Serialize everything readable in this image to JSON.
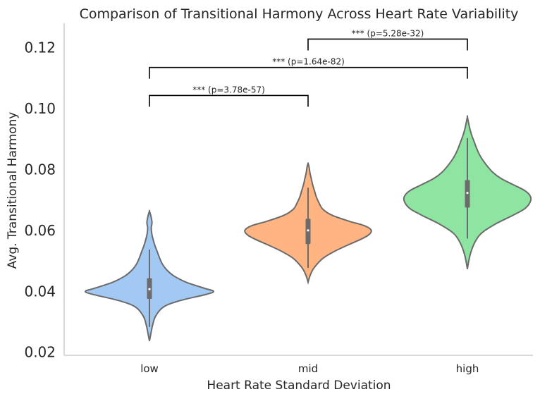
{
  "chart_data": {
    "type": "violin",
    "title": "Comparison of Transitional Harmony Across Heart Rate Variability",
    "xlabel": "Heart Rate Standard Deviation",
    "ylabel": "Avg. Transitional Harmony",
    "categories": [
      "low",
      "mid",
      "high"
    ],
    "ylim": [
      0.019,
      0.128
    ],
    "yticks": [
      0.02,
      0.04,
      0.06,
      0.08,
      0.1,
      0.12
    ],
    "ytick_labels": [
      "0.02",
      "0.04",
      "0.06",
      "0.08",
      "0.10",
      "0.12"
    ],
    "grid": false,
    "colors": {
      "low": "#a1c9f4",
      "mid": "#ffb482",
      "high": "#8de5a1",
      "outline": "#6b6b6b",
      "box": "#6b6b6b",
      "axis": "#cccccc",
      "bracket": "#000000"
    },
    "violins": [
      {
        "category": "low",
        "ymin": 0.0237,
        "ymax": 0.0663,
        "whisker": [
          0.0283,
          0.0537
        ],
        "q1": 0.0375,
        "median": 0.0407,
        "q3": 0.0443,
        "profile": [
          [
            0.0237,
            0.0
          ],
          [
            0.026,
            0.015
          ],
          [
            0.029,
            0.035
          ],
          [
            0.032,
            0.07
          ],
          [
            0.035,
            0.16
          ],
          [
            0.037,
            0.34
          ],
          [
            0.039,
            0.62
          ],
          [
            0.04,
            0.7
          ],
          [
            0.041,
            0.6
          ],
          [
            0.043,
            0.4
          ],
          [
            0.045,
            0.27
          ],
          [
            0.047,
            0.19
          ],
          [
            0.049,
            0.14
          ],
          [
            0.051,
            0.11
          ],
          [
            0.053,
            0.085
          ],
          [
            0.055,
            0.06
          ],
          [
            0.057,
            0.04
          ],
          [
            0.059,
            0.025
          ],
          [
            0.061,
            0.02
          ],
          [
            0.0625,
            0.028
          ],
          [
            0.0645,
            0.018
          ],
          [
            0.0663,
            0.0
          ]
        ]
      },
      {
        "category": "mid",
        "ymin": 0.043,
        "ymax": 0.082,
        "whisker": [
          0.0477,
          0.074
        ],
        "q1": 0.0555,
        "median": 0.06,
        "q3": 0.0638,
        "profile": [
          [
            0.043,
            0.0
          ],
          [
            0.045,
            0.02
          ],
          [
            0.047,
            0.05
          ],
          [
            0.049,
            0.1
          ],
          [
            0.051,
            0.17
          ],
          [
            0.053,
            0.28
          ],
          [
            0.055,
            0.42
          ],
          [
            0.057,
            0.57
          ],
          [
            0.0585,
            0.66
          ],
          [
            0.06,
            0.69
          ],
          [
            0.0615,
            0.62
          ],
          [
            0.063,
            0.45
          ],
          [
            0.065,
            0.26
          ],
          [
            0.067,
            0.16
          ],
          [
            0.069,
            0.12
          ],
          [
            0.071,
            0.09
          ],
          [
            0.073,
            0.07
          ],
          [
            0.075,
            0.05
          ],
          [
            0.077,
            0.035
          ],
          [
            0.079,
            0.02
          ],
          [
            0.081,
            0.01
          ],
          [
            0.082,
            0.0
          ]
        ]
      },
      {
        "category": "high",
        "ymin": 0.0473,
        "ymax": 0.0973,
        "whisker": [
          0.0573,
          0.0903
        ],
        "q1": 0.0675,
        "median": 0.0723,
        "q3": 0.0765,
        "profile": [
          [
            0.0473,
            0.0
          ],
          [
            0.05,
            0.015
          ],
          [
            0.053,
            0.04
          ],
          [
            0.056,
            0.08
          ],
          [
            0.059,
            0.15
          ],
          [
            0.062,
            0.3
          ],
          [
            0.065,
            0.5
          ],
          [
            0.067,
            0.62
          ],
          [
            0.069,
            0.68
          ],
          [
            0.071,
            0.69
          ],
          [
            0.073,
            0.63
          ],
          [
            0.075,
            0.5
          ],
          [
            0.077,
            0.37
          ],
          [
            0.079,
            0.28
          ],
          [
            0.081,
            0.22
          ],
          [
            0.083,
            0.17
          ],
          [
            0.085,
            0.13
          ],
          [
            0.087,
            0.1
          ],
          [
            0.089,
            0.075
          ],
          [
            0.091,
            0.05
          ],
          [
            0.093,
            0.03
          ],
          [
            0.095,
            0.015
          ],
          [
            0.0973,
            0.0
          ]
        ]
      }
    ],
    "annotations": [
      {
        "from": "low",
        "to": "mid",
        "y": 0.1043,
        "label": "*** (p=3.78e-57)"
      },
      {
        "from": "low",
        "to": "high",
        "y": 0.1135,
        "label": "*** (p=1.64e-82)"
      },
      {
        "from": "mid",
        "to": "high",
        "y": 0.1228,
        "label": "*** (p=5.28e-32)"
      }
    ]
  }
}
